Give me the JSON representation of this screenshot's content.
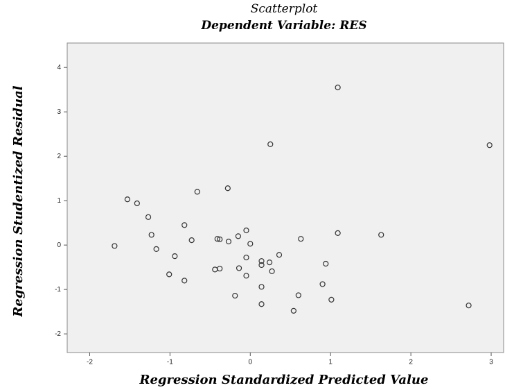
{
  "chart_data": {
    "type": "scatter",
    "title": "Scatterplot",
    "subtitle": "Dependent Variable: RES",
    "x_label": "Regression Standardized Predicted Value",
    "y_label": "Regression Studentized Residual",
    "xlim": [
      -2.28,
      3.155
    ],
    "ylim": [
      -2.42,
      4.55
    ],
    "xticks": [
      -2,
      -1,
      0,
      1,
      2,
      3
    ],
    "yticks": [
      -2,
      -1,
      0,
      1,
      2,
      3,
      4
    ],
    "series": [
      {
        "color": "#333333",
        "x": [
          1.09,
          0.25,
          2.98,
          -1.53,
          -1.41,
          -0.66,
          -0.28,
          -1.27,
          -1.23,
          -1.69,
          -1.17,
          -0.82,
          -0.73,
          -0.94,
          -1.01,
          -0.82,
          -0.41,
          -0.38,
          -0.27,
          -0.15,
          -0.05,
          0.0,
          0.36,
          0.63,
          1.09,
          1.63,
          -0.44,
          -0.38,
          -0.14,
          -0.05,
          -0.05,
          0.14,
          0.14,
          0.24,
          0.27,
          0.14,
          -0.19,
          0.14,
          0.6,
          0.54,
          0.94,
          0.9,
          1.01,
          2.72
        ],
        "values": [
          3.55,
          2.27,
          2.25,
          1.03,
          0.94,
          1.2,
          1.28,
          0.63,
          0.23,
          -0.02,
          -0.09,
          0.45,
          0.11,
          -0.25,
          -0.66,
          -0.8,
          0.14,
          0.13,
          0.08,
          0.2,
          0.33,
          0.03,
          -0.22,
          0.14,
          0.27,
          0.23,
          -0.55,
          -0.53,
          -0.52,
          -0.28,
          -0.69,
          -0.36,
          -0.45,
          -0.39,
          -0.59,
          -0.94,
          -1.14,
          -1.33,
          -1.13,
          -1.48,
          -0.42,
          -0.88,
          -1.23,
          -1.36
        ]
      }
    ]
  }
}
